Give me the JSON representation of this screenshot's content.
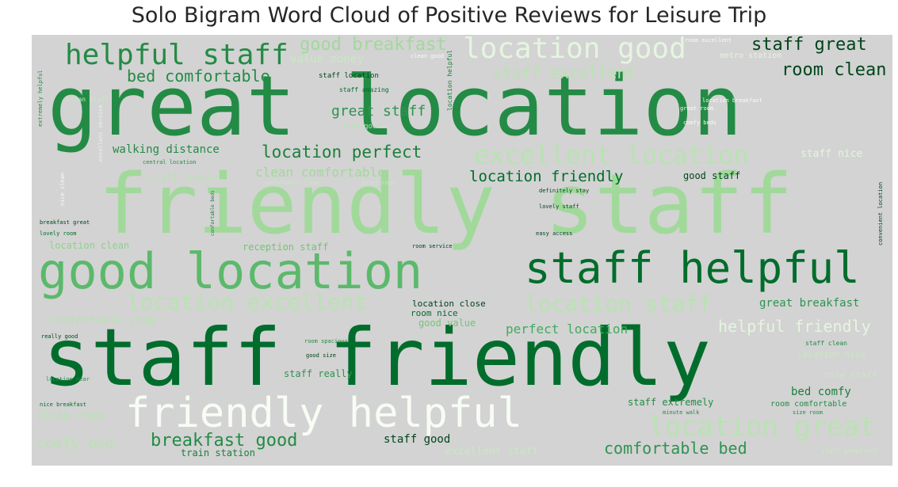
{
  "title": "Solo Bigram Word Cloud of Positive Reviews for Leisure Trip",
  "words": {
    "great_location": "great location",
    "friendly_staff": "friendly staff",
    "staff_friendly": "staff friendly",
    "good_location": "good location",
    "staff_helpful": "staff helpful",
    "friendly_helpful": "friendly helpful",
    "helpful_staff": "helpful staff",
    "location_good": "location good",
    "location_great": "location great",
    "excellent_location": "excellent location",
    "location_excellent": "location excellent",
    "location_staff": "location staff",
    "good_breakfast": "good breakfast",
    "staff_great": "staff great",
    "room_clean": "room clean",
    "bed_comfortable": "bed comfortable",
    "staff_excellent": "staff excellent",
    "value_money": "value money",
    "great_staff": "great staff",
    "location_perfect": "location perfect",
    "walking_distance": "walking distance",
    "clean_comfortable": "clean comfortable",
    "location_friendly": "location friendly",
    "staff_lovely": "staff lovely",
    "good_staff": "good staff",
    "staff_nice": "staff nice",
    "helpful_friendly": "helpful friendly",
    "great_breakfast": "great breakfast",
    "perfect_location": "perfect location",
    "comfortable_room": "comfortable room",
    "location_clean": "location clean",
    "reception_staff": "reception staff",
    "breakfast_good": "breakfast good",
    "comfortable_bed": "comfortable bed",
    "comfy_bed": "comfy bed",
    "clean_room": "clean room",
    "staff_good": "staff good",
    "excellent_staff": "excellent staff",
    "bed_comfy": "bed comfy",
    "staff_extremely": "staff extremely",
    "room_comfortable": "room comfortable",
    "location_nice": "location nice",
    "nice_staff": "nice staff",
    "staff_clean": "staff clean",
    "good_value": "good value",
    "room_nice": "room nice",
    "location_close": "location close",
    "staff_really": "staff really",
    "staff_location": "staff location",
    "staff_amazing": "staff amazing",
    "room_good": "room good",
    "metro_station": "metro station",
    "room_excellent": "room excellent",
    "location_breakfast": "location breakfast",
    "great_room": "great room",
    "comfy_beds": "comfy beds",
    "clean_good": "clean good",
    "clean_staff": "clean staff",
    "central_location": "central location",
    "comfortable_clean": "comfortable clean",
    "quiet_room": "quiet room",
    "definitely_stay": "definitely stay",
    "lovely_staff": "lovely staff",
    "easy_access": "easy access",
    "breakfast_great": "breakfast great",
    "lovely_room": "lovely room",
    "room_service": "room service",
    "really_good": "really good",
    "room_spacious": "room spacious",
    "good_size": "good size",
    "location_near": "location near",
    "nice_breakfast": "nice breakfast",
    "minute_walk": "minute walk",
    "size_room": "size room",
    "train_station": "train station",
    "staff_excellent_2": "staff excellent",
    "location_helpful": "location helpful",
    "extremely_helpful": "extremely helpful",
    "excellent_service": "excellent service",
    "nice_clean": "nice clean",
    "comfortable_beds": "comfortable beds",
    "convenient_location": "convenient location"
  }
}
